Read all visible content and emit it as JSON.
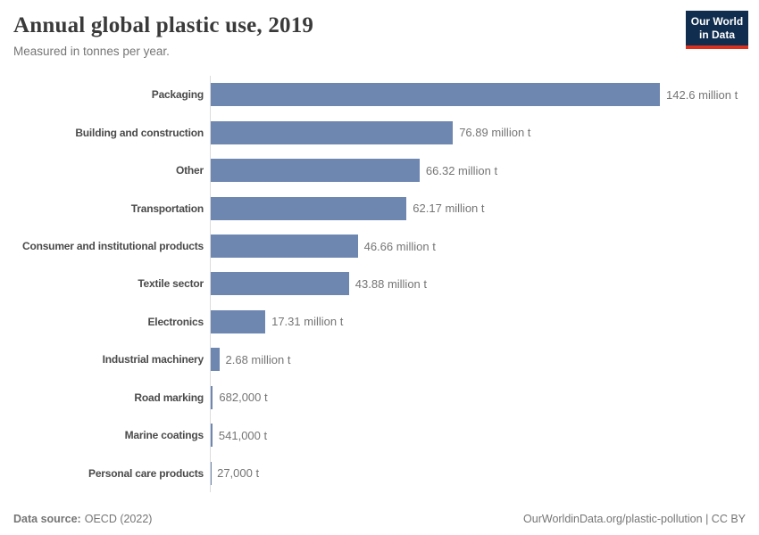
{
  "chart_data": {
    "type": "bar",
    "orientation": "horizontal",
    "title": "Annual global plastic use, 2019",
    "subtitle": "Measured in tonnes per year.",
    "unit": "million tonnes per year",
    "categories": [
      "Packaging",
      "Building and construction",
      "Other",
      "Transportation",
      "Consumer and institutional products",
      "Textile sector",
      "Electronics",
      "Industrial machinery",
      "Road marking",
      "Marine coatings",
      "Personal care products"
    ],
    "values": [
      142.6,
      76.89,
      66.32,
      62.17,
      46.66,
      43.88,
      17.31,
      2.68,
      0.682,
      0.541,
      0.027
    ],
    "value_labels": [
      "142.6 million t",
      "76.89 million t",
      "66.32 million t",
      "62.17 million t",
      "46.66 million t",
      "43.88 million t",
      "17.31 million t",
      "2.68 million t",
      "682,000 t",
      "541,000 t",
      "27,000 t"
    ],
    "xlim": [
      0,
      142.6
    ],
    "grid": false,
    "legend": false
  },
  "logo": {
    "line1": "Our World",
    "line2": "in Data"
  },
  "footer": {
    "datasource_label": "Data source:",
    "datasource_value": "OECD (2022)",
    "link": "OurWorldinData.org/plastic-pollution",
    "license_suffix": " | CC BY"
  },
  "colors": {
    "bar": "#6e87b1",
    "axis_line": "#dcdcdc",
    "logo_bg": "#102d4f",
    "logo_accent": "#dc2f1e",
    "title_text": "#3a3a3a",
    "muted_text": "#757575",
    "category_text": "#4a4a4a"
  }
}
